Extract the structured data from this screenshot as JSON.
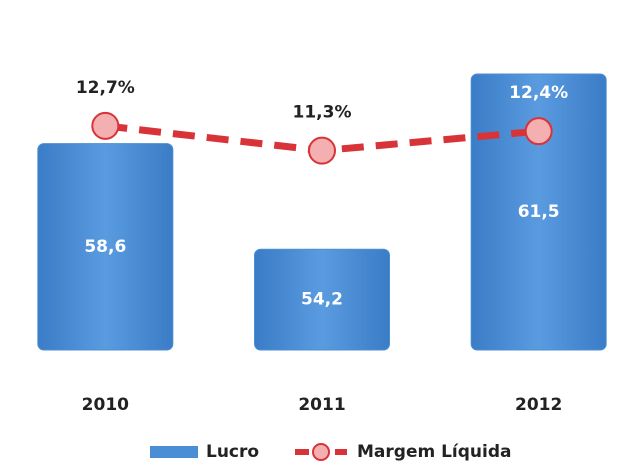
{
  "chart_data": {
    "type": "bar-line",
    "categories": [
      "2010",
      "2011",
      "2012"
    ],
    "series": [
      {
        "name": "Lucro",
        "type": "bar",
        "color": "#4a8fd6",
        "values": [
          58.6,
          54.2,
          61.5
        ],
        "value_labels": [
          "58,6",
          "54,2",
          "61,5"
        ]
      },
      {
        "name": "Margem Líquida",
        "type": "line",
        "axis": "y2",
        "color": "#d9333a",
        "values": [
          12.7,
          11.3,
          12.4
        ],
        "value_labels": [
          "12,7%",
          "11,3%",
          "12,4%"
        ]
      }
    ],
    "ylim": [
      50,
      62.5
    ],
    "y2lim": [
      0,
      17
    ],
    "legend": "bottom"
  }
}
